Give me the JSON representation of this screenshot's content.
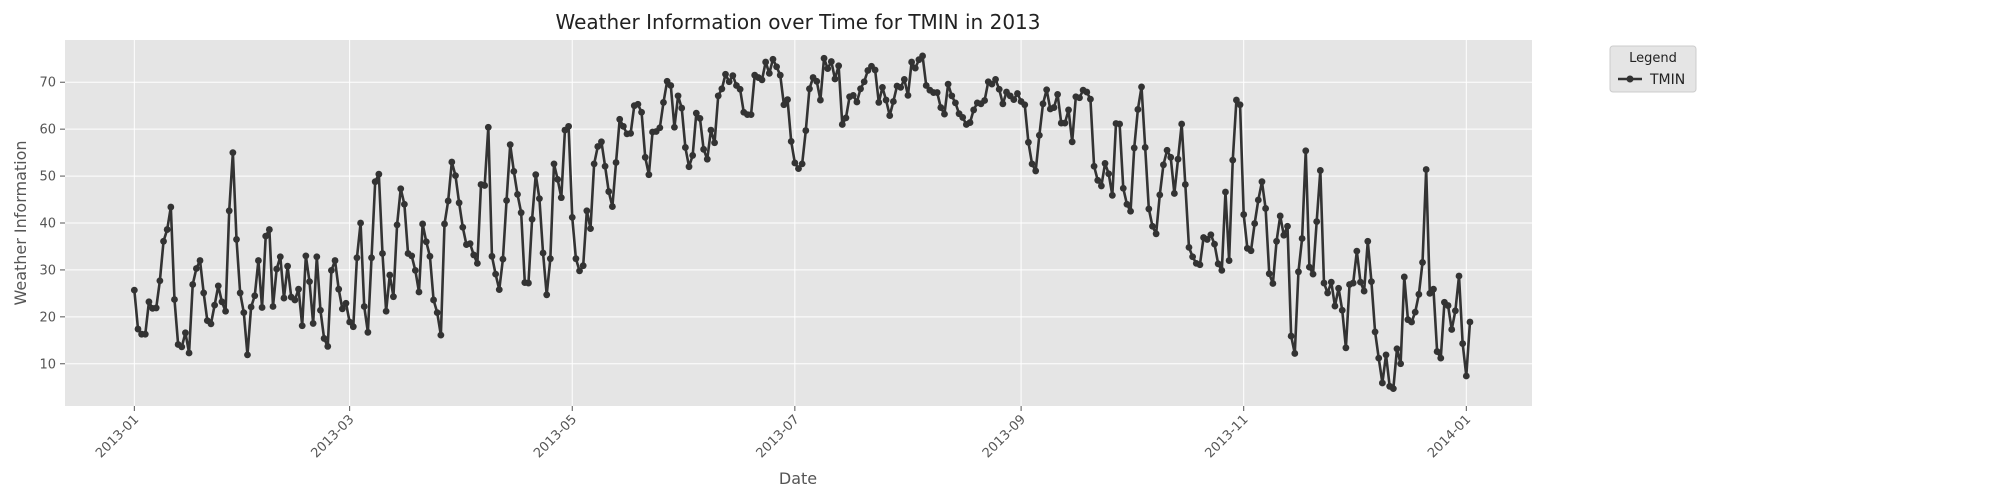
{
  "chart_data": {
    "type": "line",
    "title": "Weather Information over Time for TMIN in 2013",
    "xlabel": "Date",
    "ylabel": "Weather Information",
    "x_ticks": [
      "2013-01",
      "2013-03",
      "2013-05",
      "2013-07",
      "2013-09",
      "2013-11",
      "2014-01"
    ],
    "y_ticks": [
      10,
      20,
      30,
      40,
      50,
      60,
      70
    ],
    "xlim": [
      "2012-12-13",
      "2014-01-19"
    ],
    "ylim": [
      1,
      79
    ],
    "grid": true,
    "legend": {
      "title": "Legend",
      "placement": "outside-top-right"
    },
    "colors": {
      "line": "#333333",
      "plot_bg": "#e5e5e5",
      "grid": "#ffffff"
    },
    "series": [
      {
        "name": "TMIN",
        "start_date": "2013-01-01",
        "values": [
          25.7,
          17.4,
          16.3,
          16.3,
          23.2,
          21.8,
          21.9,
          27.7,
          36.1,
          38.6,
          43.4,
          23.7,
          14.1,
          13.6,
          16.6,
          12.3,
          26.9,
          30.3,
          32.0,
          25.1,
          19.2,
          18.5,
          22.5,
          26.6,
          23.2,
          21.2,
          42.6,
          55.0,
          36.5,
          25.1,
          20.9,
          11.9,
          22.1,
          24.5,
          32.0,
          22.0,
          37.2,
          38.6,
          22.2,
          30.2,
          32.8,
          24.0,
          30.8,
          24.2,
          23.6,
          25.9,
          18.1,
          33.0,
          27.5,
          18.6,
          32.8,
          21.4,
          15.4,
          13.7,
          29.9,
          32.0,
          25.9,
          21.7,
          22.9,
          18.9,
          17.9,
          32.6,
          40.0,
          22.2,
          16.7,
          32.6,
          48.8,
          50.4,
          33.5,
          21.2,
          28.9,
          24.3,
          39.6,
          47.3,
          44.0,
          33.5,
          33.0,
          29.9,
          25.3,
          39.8,
          36.0,
          32.9,
          23.6,
          20.9,
          16.1,
          39.8,
          44.7,
          53.0,
          50.1,
          44.3,
          39.1,
          35.4,
          35.6,
          33.2,
          31.4,
          48.2,
          48.0,
          60.4,
          32.9,
          29.1,
          25.8,
          32.3,
          44.8,
          56.7,
          51.0,
          46.1,
          42.2,
          27.3,
          27.2,
          40.8,
          50.3,
          45.2,
          33.6,
          24.7,
          32.4,
          52.6,
          49.3,
          45.4,
          59.8,
          60.6,
          41.2,
          32.4,
          29.8,
          30.9,
          42.6,
          38.8,
          52.6,
          56.3,
          57.3,
          52.1,
          46.7,
          43.5,
          52.9,
          62.1,
          60.6,
          59.0,
          59.1,
          65.0,
          65.3,
          63.6,
          54.0,
          50.3,
          59.4,
          59.5,
          60.3,
          65.7,
          70.2,
          69.3,
          60.4,
          67.1,
          64.5,
          56.1,
          52.0,
          54.4,
          63.4,
          62.3,
          55.7,
          53.6,
          59.8,
          57.1,
          67.1,
          68.6,
          71.7,
          70.1,
          71.4,
          69.3,
          68.5,
          63.6,
          63.1,
          63.1,
          71.5,
          71.0,
          70.5,
          74.3,
          71.9,
          74.9,
          73.3,
          71.5,
          65.2,
          66.3,
          57.4,
          52.8,
          51.6,
          52.6,
          59.7,
          68.6,
          71.0,
          70.2,
          66.2,
          75.1,
          72.9,
          74.4,
          70.7,
          73.5,
          61.0,
          62.4,
          66.9,
          67.2,
          65.8,
          68.6,
          70.1,
          72.5,
          73.4,
          72.6,
          65.7,
          68.9,
          66.2,
          62.9,
          65.9,
          69.2,
          68.9,
          70.6,
          67.2,
          74.3,
          73.0,
          74.8,
          75.6,
          69.3,
          68.3,
          67.8,
          67.8,
          64.6,
          63.2,
          69.6,
          67.1,
          65.6,
          63.3,
          62.5,
          61.0,
          61.4,
          64.1,
          65.6,
          65.4,
          66.1,
          70.1,
          69.6,
          70.6,
          68.5,
          65.4,
          67.9,
          67.1,
          66.3,
          67.6,
          65.9,
          65.2,
          57.2,
          52.6,
          51.1,
          58.7,
          65.4,
          68.4,
          64.3,
          64.6,
          67.4,
          61.3,
          61.3,
          64.1,
          57.3,
          66.9,
          66.7,
          68.3,
          67.9,
          66.4,
          52.1,
          49.1,
          47.9,
          52.7,
          50.5,
          45.9,
          61.2,
          61.1,
          47.4,
          44.0,
          42.5,
          56.0,
          64.2,
          69.0,
          56.1,
          43.0,
          39.3,
          37.7,
          46.0,
          52.4,
          55.5,
          54.0,
          46.3,
          53.6,
          61.1,
          48.2,
          34.8,
          32.8,
          31.4,
          31.1,
          36.9,
          36.5,
          37.5,
          35.5,
          31.3,
          29.9,
          46.6,
          32.0,
          53.4,
          66.2,
          65.2,
          41.8,
          34.6,
          34.1,
          39.9,
          44.9,
          48.8,
          43.1,
          29.2,
          27.1,
          36.1,
          41.5,
          37.4,
          39.3,
          15.9,
          12.2,
          29.6,
          36.7,
          55.4,
          30.6,
          29.1,
          40.3,
          51.2,
          27.2,
          25.1,
          27.4,
          22.3,
          26.1,
          21.4,
          13.4,
          26.9,
          27.2,
          34.0,
          27.4,
          25.5,
          36.1,
          27.5,
          16.8,
          11.2,
          5.9,
          11.9,
          5.2,
          4.7,
          13.2,
          10.0,
          28.5,
          19.4,
          18.9,
          21.0,
          24.8,
          31.6,
          51.4,
          25.0,
          25.9,
          12.6,
          11.2,
          23.1,
          22.4,
          17.3,
          21.3,
          28.7,
          14.3,
          7.4,
          18.9
        ]
      }
    ]
  }
}
